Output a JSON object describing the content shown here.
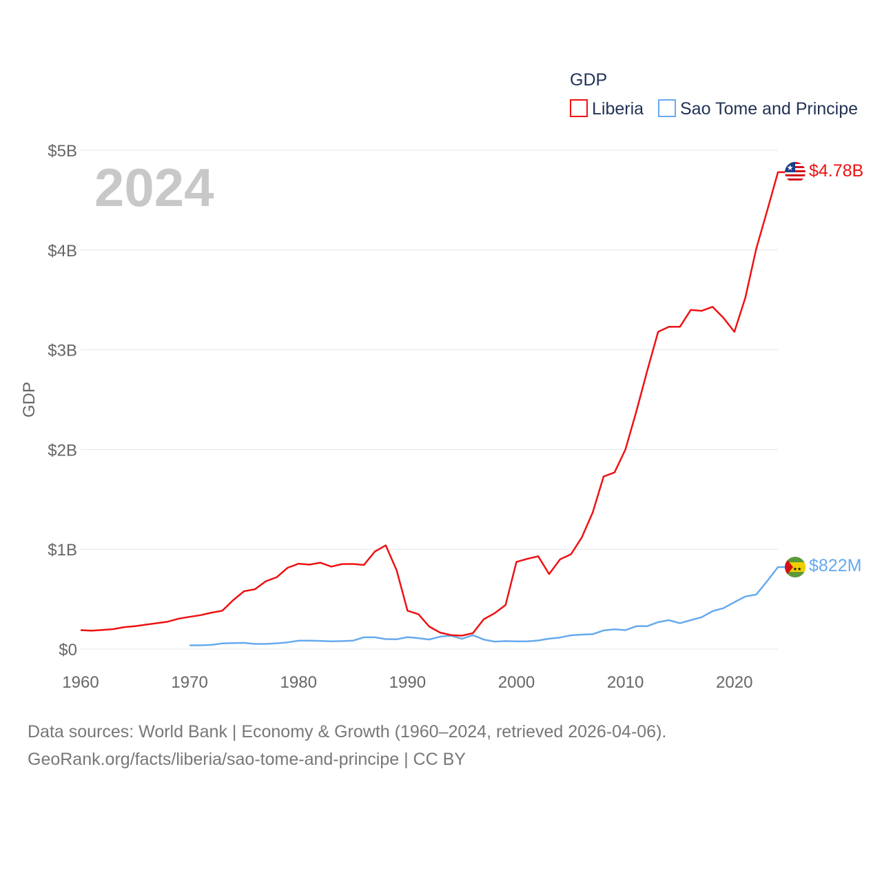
{
  "colors": {
    "liberia": "#ee1111",
    "sao_tome": "#66aaee",
    "axis_text": "#666666",
    "legend_text": "#223355",
    "grid": "#e6e6e6",
    "year_watermark": "#c8c8c8"
  },
  "chart_data": {
    "type": "line",
    "title": "GDP",
    "ylabel": "GDP",
    "xlabel": "",
    "year_label": "2024",
    "xlim": [
      1960,
      2024
    ],
    "ylim": [
      0,
      5000000000
    ],
    "x_ticks": [
      {
        "value": 1960,
        "label": "1960"
      },
      {
        "value": 1970,
        "label": "1970"
      },
      {
        "value": 1980,
        "label": "1980"
      },
      {
        "value": 1990,
        "label": "1990"
      },
      {
        "value": 2000,
        "label": "2000"
      },
      {
        "value": 2010,
        "label": "2010"
      },
      {
        "value": 2020,
        "label": "2020"
      }
    ],
    "y_ticks": [
      {
        "value": 0,
        "label": "$0"
      },
      {
        "value": 1000000000,
        "label": "$1B"
      },
      {
        "value": 2000000000,
        "label": "$2B"
      },
      {
        "value": 3000000000,
        "label": "$3B"
      },
      {
        "value": 4000000000,
        "label": "$4B"
      },
      {
        "value": 5000000000,
        "label": "$5B"
      }
    ],
    "legend_position": "top-right",
    "series": [
      {
        "name": "Liberia",
        "color_key": "liberia",
        "end_label": "$4.78B",
        "flag": "liberia-flag",
        "x": [
          1960,
          1961,
          1962,
          1963,
          1964,
          1965,
          1966,
          1967,
          1968,
          1969,
          1970,
          1971,
          1972,
          1973,
          1974,
          1975,
          1976,
          1977,
          1978,
          1979,
          1980,
          1981,
          1982,
          1983,
          1984,
          1985,
          1986,
          1987,
          1988,
          1989,
          1990,
          1991,
          1992,
          1993,
          1994,
          1995,
          1996,
          1997,
          1998,
          1999,
          2000,
          2001,
          2002,
          2003,
          2004,
          2005,
          2006,
          2007,
          2008,
          2009,
          2010,
          2011,
          2012,
          2013,
          2014,
          2015,
          2016,
          2017,
          2018,
          2019,
          2020,
          2021,
          2022,
          2023,
          2024
        ],
        "values": [
          190000000,
          185000000,
          192000000,
          200000000,
          220000000,
          230000000,
          245000000,
          260000000,
          275000000,
          305000000,
          323000000,
          340000000,
          365000000,
          385000000,
          490000000,
          580000000,
          600000000,
          680000000,
          720000000,
          815000000,
          856000000,
          847000000,
          866000000,
          827000000,
          852000000,
          853000000,
          843000000,
          977000000,
          1040000000,
          790000000,
          385000000,
          350000000,
          225000000,
          165000000,
          140000000,
          135000000,
          160000000,
          300000000,
          360000000,
          442000000,
          874000000,
          905000000,
          930000000,
          752000000,
          900000000,
          950000000,
          1120000000,
          1370000000,
          1730000000,
          1770000000,
          2000000000,
          2380000000,
          2790000000,
          3180000000,
          3230000000,
          3230000000,
          3400000000,
          3390000000,
          3430000000,
          3320000000,
          3180000000,
          3520000000,
          4010000000,
          4390000000,
          4780000000
        ]
      },
      {
        "name": "Sao Tome and Principe",
        "color_key": "sao_tome",
        "end_label": "$822M",
        "flag": "sao-tome-flag",
        "x": [
          1970,
          1971,
          1972,
          1973,
          1974,
          1975,
          1976,
          1977,
          1978,
          1979,
          1980,
          1981,
          1982,
          1983,
          1984,
          1985,
          1986,
          1987,
          1988,
          1989,
          1990,
          1991,
          1992,
          1993,
          1994,
          1995,
          1996,
          1997,
          1998,
          1999,
          2000,
          2001,
          2002,
          2003,
          2004,
          2005,
          2006,
          2007,
          2008,
          2009,
          2010,
          2011,
          2012,
          2013,
          2014,
          2015,
          2016,
          2017,
          2018,
          2019,
          2020,
          2021,
          2022,
          2023,
          2024
        ],
        "values": [
          38000000,
          38000000,
          42000000,
          57000000,
          60000000,
          62000000,
          52000000,
          52000000,
          58000000,
          68000000,
          84000000,
          85000000,
          82000000,
          78000000,
          80000000,
          85000000,
          118000000,
          118000000,
          100000000,
          98000000,
          120000000,
          110000000,
          96000000,
          125000000,
          135000000,
          103000000,
          140000000,
          95000000,
          75000000,
          80000000,
          78000000,
          78000000,
          86000000,
          104000000,
          116000000,
          138000000,
          145000000,
          150000000,
          187000000,
          198000000,
          190000000,
          229000000,
          230000000,
          270000000,
          290000000,
          260000000,
          290000000,
          320000000,
          380000000,
          410000000,
          470000000,
          527000000,
          546000000,
          680000000,
          822000000
        ]
      }
    ]
  },
  "source": {
    "line1": "Data sources: World Bank | Economy & Growth (1960–2024, retrieved 2026-04-06).",
    "line2": "GeoRank.org/facts/liberia/sao-tome-and-principe | CC BY"
  }
}
